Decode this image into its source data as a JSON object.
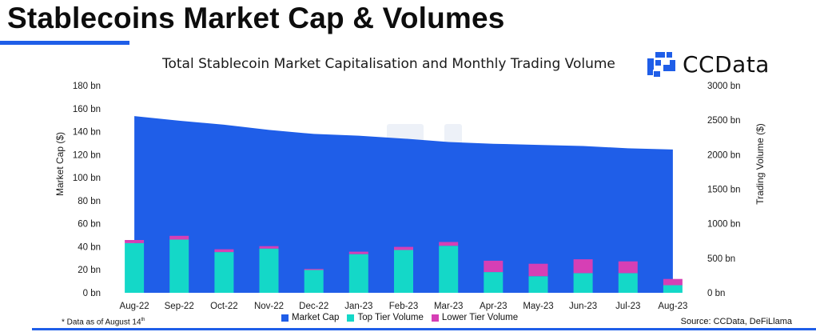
{
  "header": {
    "title": "Stablecoins Market Cap & Volumes",
    "accent_color": "#1f5ee8"
  },
  "brand": {
    "name": "CCData",
    "logo_icon": "ccdata-logo-icon",
    "logo_color": "#1f5ee8"
  },
  "footer": {
    "footnote": "* Data as of August 14",
    "footnote_sup": "th",
    "source": "Source: CCData, DeFiLlama"
  },
  "chart_data": {
    "type": "area+stacked-bar",
    "title": "Total Stablecoin Market Capitalisation and Monthly Trading Volume",
    "categories": [
      "Aug-22",
      "Sep-22",
      "Oct-22",
      "Nov-22",
      "Dec-22",
      "Jan-23",
      "Feb-23",
      "Mar-23",
      "Apr-23",
      "May-23",
      "Jun-23",
      "Jul-23",
      "Aug-23"
    ],
    "y_left": {
      "label": "Market Cap ($)",
      "range": [
        0,
        180
      ],
      "ticks": [
        "0 bn",
        "20 bn",
        "40 bn",
        "60 bn",
        "80 bn",
        "100 bn",
        "120 bn",
        "140 bn",
        "160 bn",
        "180 bn"
      ]
    },
    "y_right": {
      "label": "Trading Volume ($)",
      "range": [
        0,
        3000
      ],
      "ticks": [
        "0 bn",
        "500 bn",
        "1000 bn",
        "1500 bn",
        "2000 bn",
        "2500 bn",
        "3000 bn"
      ]
    },
    "series": [
      {
        "name": "Market Cap",
        "type": "area",
        "axis": "left",
        "color": "#1f5ee8",
        "values": [
          153.5,
          149.5,
          146,
          141.5,
          138,
          136.5,
          134,
          131,
          129.5,
          128.5,
          127.5,
          125.5,
          124.5
        ]
      },
      {
        "name": "Top Tier Volume",
        "type": "bar",
        "axis": "right",
        "color": "#14d8c8",
        "values": [
          720,
          770,
          590,
          640,
          330,
          560,
          620,
          680,
          300,
          240,
          285,
          285,
          110
        ]
      },
      {
        "name": "Lower Tier Volume",
        "type": "bar",
        "axis": "right",
        "color": "#d63fb5",
        "values": [
          45,
          55,
          40,
          35,
          15,
          35,
          45,
          55,
          165,
          180,
          200,
          170,
          90
        ]
      }
    ],
    "grid": false,
    "legend_position": "bottom"
  }
}
